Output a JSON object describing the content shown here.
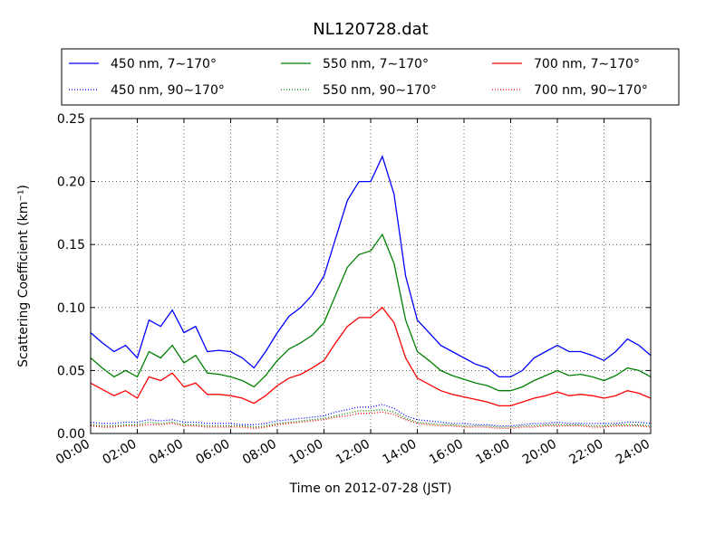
{
  "chart_data": {
    "type": "line",
    "title": "NL120728.dat",
    "xlabel": "Time on 2012-07-28 (JST)",
    "ylabel": "Scattering Coefficient (km⁻¹)",
    "xlim": [
      0,
      24
    ],
    "ylim": [
      0,
      0.25
    ],
    "x_ticks": [
      "00:00",
      "02:00",
      "04:00",
      "06:00",
      "08:00",
      "10:00",
      "12:00",
      "14:00",
      "16:00",
      "18:00",
      "20:00",
      "22:00",
      "24:00"
    ],
    "y_ticks": [
      "0.00",
      "0.05",
      "0.10",
      "0.15",
      "0.20",
      "0.25"
    ],
    "grid": true,
    "legend_position": "top",
    "colors": {
      "blue": "#0000ff",
      "green": "#008000",
      "red": "#ff0000"
    },
    "x": [
      0,
      0.5,
      1,
      1.5,
      2,
      2.5,
      3,
      3.5,
      4,
      4.5,
      5,
      5.5,
      6,
      6.5,
      7,
      7.5,
      8,
      8.5,
      9,
      9.5,
      10,
      10.5,
      11,
      11.5,
      12,
      12.5,
      13,
      13.5,
      14,
      14.5,
      15,
      15.5,
      16,
      16.5,
      17,
      17.5,
      18,
      18.5,
      19,
      19.5,
      20,
      20.5,
      21,
      21.5,
      22,
      22.5,
      23,
      23.5,
      24
    ],
    "series": [
      {
        "name": "450 nm, 7∼170°",
        "color": "#0000ff",
        "style": "solid",
        "values": [
          0.08,
          0.072,
          0.065,
          0.07,
          0.06,
          0.09,
          0.085,
          0.098,
          0.08,
          0.085,
          0.065,
          0.066,
          0.065,
          0.06,
          0.052,
          0.065,
          0.08,
          0.093,
          0.1,
          0.11,
          0.125,
          0.155,
          0.185,
          0.2,
          0.2,
          0.22,
          0.19,
          0.125,
          0.09,
          0.08,
          0.07,
          0.065,
          0.06,
          0.055,
          0.052,
          0.045,
          0.045,
          0.05,
          0.06,
          0.065,
          0.07,
          0.065,
          0.065,
          0.062,
          0.058,
          0.065,
          0.075,
          0.07,
          0.062
        ]
      },
      {
        "name": "550 nm, 7∼170°",
        "color": "#008000",
        "style": "solid",
        "values": [
          0.06,
          0.052,
          0.045,
          0.05,
          0.045,
          0.065,
          0.06,
          0.07,
          0.056,
          0.062,
          0.048,
          0.047,
          0.045,
          0.042,
          0.037,
          0.046,
          0.058,
          0.067,
          0.072,
          0.078,
          0.088,
          0.11,
          0.132,
          0.142,
          0.145,
          0.158,
          0.135,
          0.09,
          0.065,
          0.058,
          0.05,
          0.046,
          0.043,
          0.04,
          0.038,
          0.034,
          0.034,
          0.037,
          0.042,
          0.046,
          0.05,
          0.046,
          0.047,
          0.045,
          0.042,
          0.046,
          0.052,
          0.05,
          0.045
        ]
      },
      {
        "name": "700 nm, 7∼170°",
        "color": "#ff0000",
        "style": "solid",
        "values": [
          0.04,
          0.035,
          0.03,
          0.034,
          0.028,
          0.045,
          0.042,
          0.048,
          0.037,
          0.04,
          0.031,
          0.031,
          0.03,
          0.028,
          0.024,
          0.03,
          0.038,
          0.044,
          0.047,
          0.052,
          0.058,
          0.072,
          0.085,
          0.092,
          0.092,
          0.1,
          0.088,
          0.06,
          0.044,
          0.039,
          0.034,
          0.031,
          0.029,
          0.027,
          0.025,
          0.022,
          0.022,
          0.025,
          0.028,
          0.03,
          0.033,
          0.03,
          0.031,
          0.03,
          0.028,
          0.03,
          0.034,
          0.032,
          0.028
        ]
      },
      {
        "name": "450 nm, 90∼170°",
        "color": "#0000ff",
        "style": "dotted",
        "values": [
          0.009,
          0.008,
          0.008,
          0.009,
          0.009,
          0.011,
          0.01,
          0.011,
          0.009,
          0.009,
          0.008,
          0.008,
          0.008,
          0.007,
          0.007,
          0.008,
          0.01,
          0.011,
          0.012,
          0.013,
          0.014,
          0.017,
          0.019,
          0.021,
          0.021,
          0.023,
          0.02,
          0.014,
          0.011,
          0.01,
          0.009,
          0.008,
          0.008,
          0.007,
          0.007,
          0.006,
          0.006,
          0.007,
          0.008,
          0.008,
          0.009,
          0.008,
          0.008,
          0.008,
          0.008,
          0.008,
          0.009,
          0.009,
          0.008
        ]
      },
      {
        "name": "550 nm, 90∼170°",
        "color": "#008000",
        "style": "dotted",
        "values": [
          0.007,
          0.006,
          0.006,
          0.007,
          0.007,
          0.009,
          0.008,
          0.009,
          0.007,
          0.007,
          0.006,
          0.006,
          0.006,
          0.006,
          0.005,
          0.006,
          0.008,
          0.009,
          0.01,
          0.011,
          0.012,
          0.014,
          0.016,
          0.018,
          0.018,
          0.019,
          0.017,
          0.012,
          0.009,
          0.008,
          0.007,
          0.007,
          0.006,
          0.006,
          0.006,
          0.005,
          0.005,
          0.006,
          0.006,
          0.007,
          0.007,
          0.007,
          0.007,
          0.006,
          0.006,
          0.007,
          0.007,
          0.007,
          0.006
        ]
      },
      {
        "name": "700 nm, 90∼170°",
        "color": "#ff0000",
        "style": "dotted",
        "values": [
          0.006,
          0.005,
          0.005,
          0.006,
          0.006,
          0.007,
          0.007,
          0.008,
          0.006,
          0.006,
          0.005,
          0.005,
          0.005,
          0.005,
          0.004,
          0.005,
          0.007,
          0.008,
          0.009,
          0.01,
          0.011,
          0.013,
          0.014,
          0.016,
          0.016,
          0.017,
          0.015,
          0.011,
          0.008,
          0.007,
          0.006,
          0.006,
          0.005,
          0.005,
          0.005,
          0.004,
          0.004,
          0.005,
          0.005,
          0.006,
          0.006,
          0.006,
          0.006,
          0.005,
          0.005,
          0.006,
          0.006,
          0.006,
          0.005
        ]
      }
    ]
  }
}
